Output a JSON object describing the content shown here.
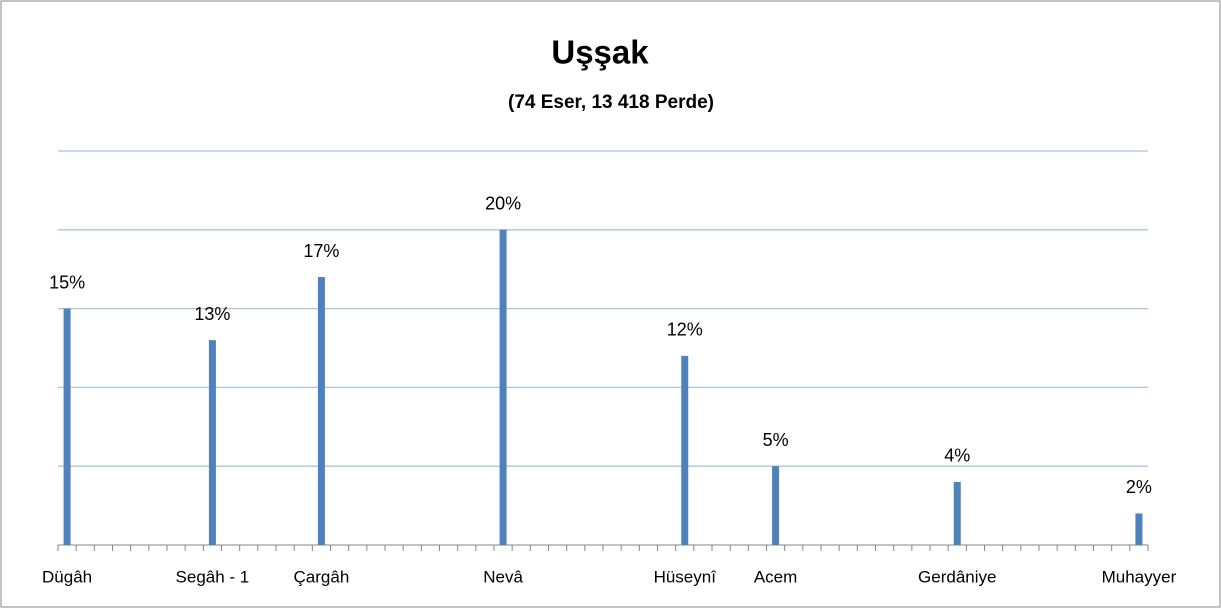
{
  "chart_data": {
    "type": "bar",
    "title": "Uşşak",
    "subtitle": "(74 Eser,  13 418 Perde)",
    "categories": [
      "Dügâh",
      null,
      null,
      null,
      null,
      null,
      null,
      null,
      "Segâh - 1",
      null,
      null,
      null,
      null,
      null,
      "Çargâh",
      null,
      null,
      null,
      null,
      null,
      null,
      null,
      null,
      null,
      "Nevâ",
      null,
      null,
      null,
      null,
      null,
      null,
      null,
      null,
      null,
      "Hüseynî",
      null,
      null,
      null,
      null,
      "Acem",
      null,
      null,
      null,
      null,
      null,
      null,
      null,
      null,
      null,
      "Gerdâniye",
      null,
      null,
      null,
      null,
      null,
      null,
      null,
      null,
      null,
      "Muhayyer"
    ],
    "values": [
      15,
      null,
      null,
      null,
      null,
      null,
      null,
      null,
      13,
      null,
      null,
      null,
      null,
      null,
      17,
      null,
      null,
      null,
      null,
      null,
      null,
      null,
      null,
      null,
      20,
      null,
      null,
      null,
      null,
      null,
      null,
      null,
      null,
      null,
      12,
      null,
      null,
      null,
      null,
      5,
      null,
      null,
      null,
      null,
      null,
      null,
      null,
      null,
      null,
      4,
      null,
      null,
      null,
      null,
      null,
      null,
      null,
      null,
      null,
      2
    ],
    "value_labels": [
      "15%",
      null,
      null,
      null,
      null,
      null,
      null,
      null,
      "13%",
      null,
      null,
      null,
      null,
      null,
      "17%",
      null,
      null,
      null,
      null,
      null,
      null,
      null,
      null,
      null,
      "20%",
      null,
      null,
      null,
      null,
      null,
      null,
      null,
      null,
      null,
      "12%",
      null,
      null,
      null,
      null,
      "5%",
      null,
      null,
      null,
      null,
      null,
      null,
      null,
      null,
      null,
      "4%",
      null,
      null,
      null,
      null,
      null,
      null,
      null,
      null,
      null,
      "2%"
    ],
    "color": "#4f81bd",
    "ylim": [
      0,
      25
    ],
    "yticks": [
      0,
      5,
      10,
      15,
      20,
      25
    ],
    "grid": true
  }
}
